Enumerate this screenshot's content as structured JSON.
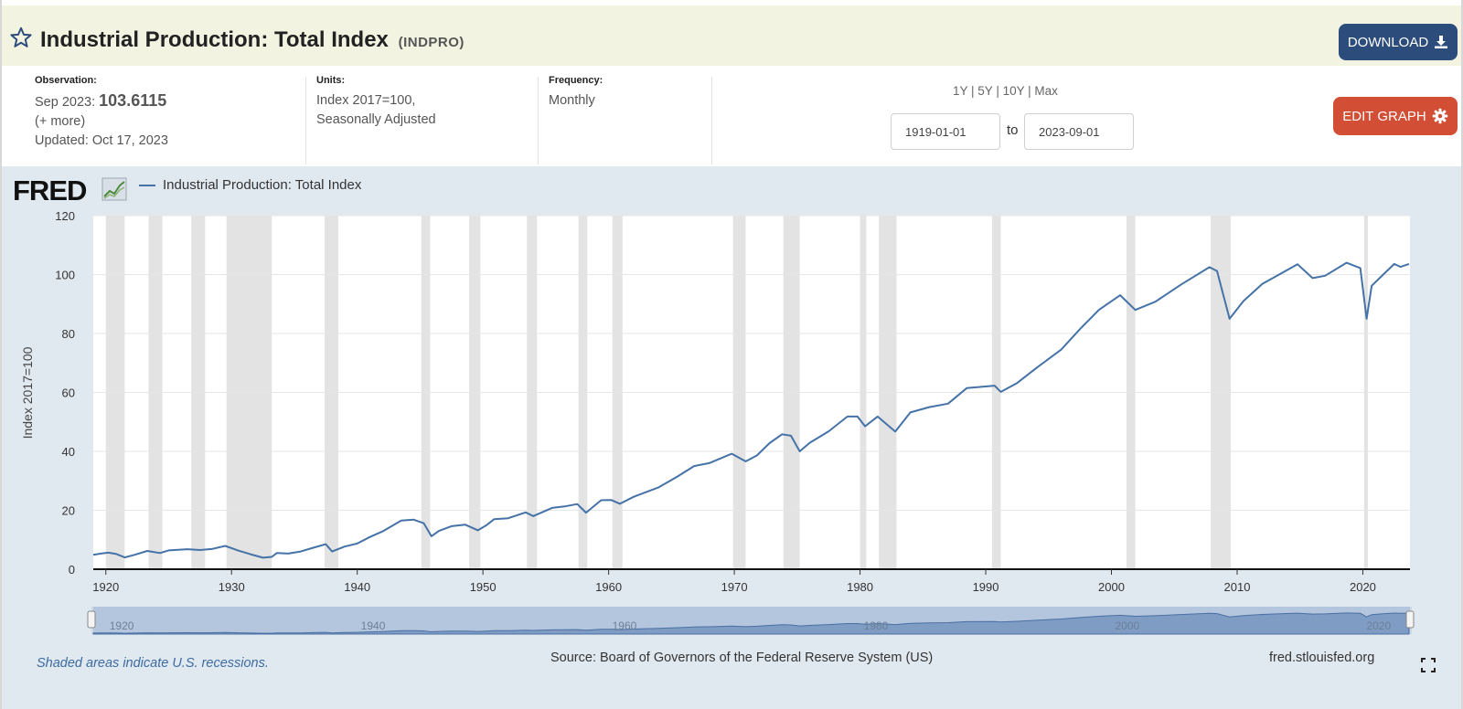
{
  "header": {
    "title": "Industrial Production: Total Index",
    "series_id": "(INDPRO)",
    "download_label": "DOWNLOAD",
    "icons": {
      "favorite": "star-icon",
      "download": "download-icon"
    }
  },
  "meta": {
    "observation": {
      "label": "Observation:",
      "date": "Sep 2023:",
      "value": "103.6115",
      "more": "(+ more)",
      "updated": "Updated: Oct 17, 2023"
    },
    "units": {
      "label": "Units:",
      "line1": "Index 2017=100,",
      "line2": "Seasonally Adjusted"
    },
    "frequency": {
      "label": "Frequency:",
      "value": "Monthly"
    },
    "range_links": [
      "1Y",
      "5Y",
      "10Y",
      "Max"
    ],
    "start_date": "1919-01-01",
    "to_label": "to",
    "end_date": "2023-09-01",
    "edit_label": "EDIT GRAPH",
    "icons": {
      "edit": "gear-icon"
    }
  },
  "chart_header": {
    "logo": "FRED",
    "legend_label": "Industrial Production: Total Index"
  },
  "footer": {
    "note": "Shaded areas indicate U.S. recessions.",
    "source": "Source: Board of Governors of the Federal Reserve System (US)",
    "site": "fred.stlouisfed.org",
    "icons": {
      "fullscreen": "fullscreen-icon"
    }
  },
  "colors": {
    "series": "#4572a7",
    "recession": "#e3e3e3",
    "title_bg": "#f2f4e1",
    "chart_bg": "#e1e9f0",
    "download_bg": "#2c4c7c",
    "edit_bg": "#d24e35"
  },
  "chart_data": {
    "type": "line",
    "xlabel": "",
    "ylabel": "Index 2017=100",
    "xlim": [
      1919.0,
      2023.75
    ],
    "ylim": [
      0,
      120
    ],
    "yticks": [
      0,
      20,
      40,
      60,
      80,
      100,
      120
    ],
    "xticks": [
      1920,
      1930,
      1940,
      1950,
      1960,
      1970,
      1980,
      1990,
      2000,
      2010,
      2020
    ],
    "grid": true,
    "legend_position": "top-left",
    "navigator_labels": [
      "1920",
      "1940",
      "1960",
      "1980",
      "2000",
      "2020"
    ],
    "recessions": [
      [
        1920.0,
        1921.5
      ],
      [
        1923.4,
        1924.5
      ],
      [
        1926.8,
        1927.9
      ],
      [
        1929.6,
        1933.2
      ],
      [
        1937.4,
        1938.5
      ],
      [
        1945.1,
        1945.8
      ],
      [
        1948.9,
        1949.8
      ],
      [
        1953.5,
        1954.3
      ],
      [
        1957.6,
        1958.3
      ],
      [
        1960.3,
        1961.1
      ],
      [
        1969.9,
        1970.9
      ],
      [
        1973.9,
        1975.2
      ],
      [
        1980.0,
        1980.5
      ],
      [
        1981.5,
        1982.9
      ],
      [
        1990.5,
        1991.2
      ],
      [
        2001.2,
        2001.9
      ],
      [
        2007.9,
        2009.5
      ],
      [
        2020.1,
        2020.4
      ]
    ],
    "series": [
      {
        "name": "Industrial Production: Total Index",
        "points": [
          [
            1919.0,
            4.9
          ],
          [
            1919.6,
            5.3
          ],
          [
            1920.2,
            5.6
          ],
          [
            1920.8,
            5.2
          ],
          [
            1921.5,
            4.0
          ],
          [
            1922.3,
            4.9
          ],
          [
            1923.3,
            6.2
          ],
          [
            1924.3,
            5.5
          ],
          [
            1925.0,
            6.4
          ],
          [
            1926.5,
            6.8
          ],
          [
            1927.5,
            6.5
          ],
          [
            1928.5,
            6.9
          ],
          [
            1929.5,
            7.9
          ],
          [
            1930.5,
            6.4
          ],
          [
            1931.5,
            5.1
          ],
          [
            1932.5,
            3.9
          ],
          [
            1933.2,
            4.2
          ],
          [
            1933.6,
            5.5
          ],
          [
            1934.5,
            5.3
          ],
          [
            1935.5,
            6.0
          ],
          [
            1936.5,
            7.3
          ],
          [
            1937.5,
            8.5
          ],
          [
            1938.0,
            6.0
          ],
          [
            1939.0,
            7.7
          ],
          [
            1940.0,
            8.7
          ],
          [
            1941.0,
            10.9
          ],
          [
            1942.0,
            12.8
          ],
          [
            1943.5,
            16.5
          ],
          [
            1944.5,
            16.8
          ],
          [
            1945.3,
            15.6
          ],
          [
            1945.9,
            11.2
          ],
          [
            1946.5,
            13.0
          ],
          [
            1947.5,
            14.6
          ],
          [
            1948.6,
            15.1
          ],
          [
            1949.6,
            13.2
          ],
          [
            1950.3,
            15.0
          ],
          [
            1950.9,
            17.0
          ],
          [
            1952.0,
            17.3
          ],
          [
            1953.4,
            19.3
          ],
          [
            1954.0,
            18.0
          ],
          [
            1955.5,
            20.8
          ],
          [
            1956.5,
            21.3
          ],
          [
            1957.5,
            22.1
          ],
          [
            1958.2,
            19.2
          ],
          [
            1959.4,
            23.4
          ],
          [
            1960.2,
            23.5
          ],
          [
            1960.9,
            22.2
          ],
          [
            1962.0,
            24.6
          ],
          [
            1964.0,
            27.8
          ],
          [
            1965.5,
            31.5
          ],
          [
            1966.8,
            35.0
          ],
          [
            1968.0,
            36.0
          ],
          [
            1969.8,
            39.2
          ],
          [
            1970.9,
            36.6
          ],
          [
            1971.8,
            38.6
          ],
          [
            1972.8,
            42.8
          ],
          [
            1973.8,
            45.8
          ],
          [
            1974.5,
            45.3
          ],
          [
            1975.2,
            40.0
          ],
          [
            1976.0,
            42.9
          ],
          [
            1977.5,
            46.8
          ],
          [
            1979.0,
            51.8
          ],
          [
            1979.8,
            51.8
          ],
          [
            1980.4,
            48.5
          ],
          [
            1981.4,
            51.8
          ],
          [
            1982.8,
            46.7
          ],
          [
            1984.0,
            53.2
          ],
          [
            1985.5,
            55.0
          ],
          [
            1987.0,
            56.2
          ],
          [
            1988.5,
            61.5
          ],
          [
            1990.7,
            62.3
          ],
          [
            1991.2,
            60.2
          ],
          [
            1992.5,
            63.2
          ],
          [
            1994.0,
            68.2
          ],
          [
            1996.0,
            74.5
          ],
          [
            1997.5,
            81.5
          ],
          [
            1999.0,
            88.0
          ],
          [
            2000.7,
            93.0
          ],
          [
            2001.9,
            88.0
          ],
          [
            2003.5,
            90.8
          ],
          [
            2005.5,
            96.5
          ],
          [
            2007.8,
            102.5
          ],
          [
            2008.4,
            101.2
          ],
          [
            2009.4,
            85.0
          ],
          [
            2010.5,
            91.0
          ],
          [
            2012.0,
            96.8
          ],
          [
            2014.8,
            103.5
          ],
          [
            2016.0,
            98.8
          ],
          [
            2017.0,
            99.6
          ],
          [
            2018.7,
            104.0
          ],
          [
            2019.8,
            102.2
          ],
          [
            2020.3,
            85.0
          ],
          [
            2020.7,
            96.2
          ],
          [
            2021.5,
            99.5
          ],
          [
            2022.5,
            103.6
          ],
          [
            2023.0,
            102.6
          ],
          [
            2023.67,
            103.6
          ]
        ]
      }
    ]
  }
}
